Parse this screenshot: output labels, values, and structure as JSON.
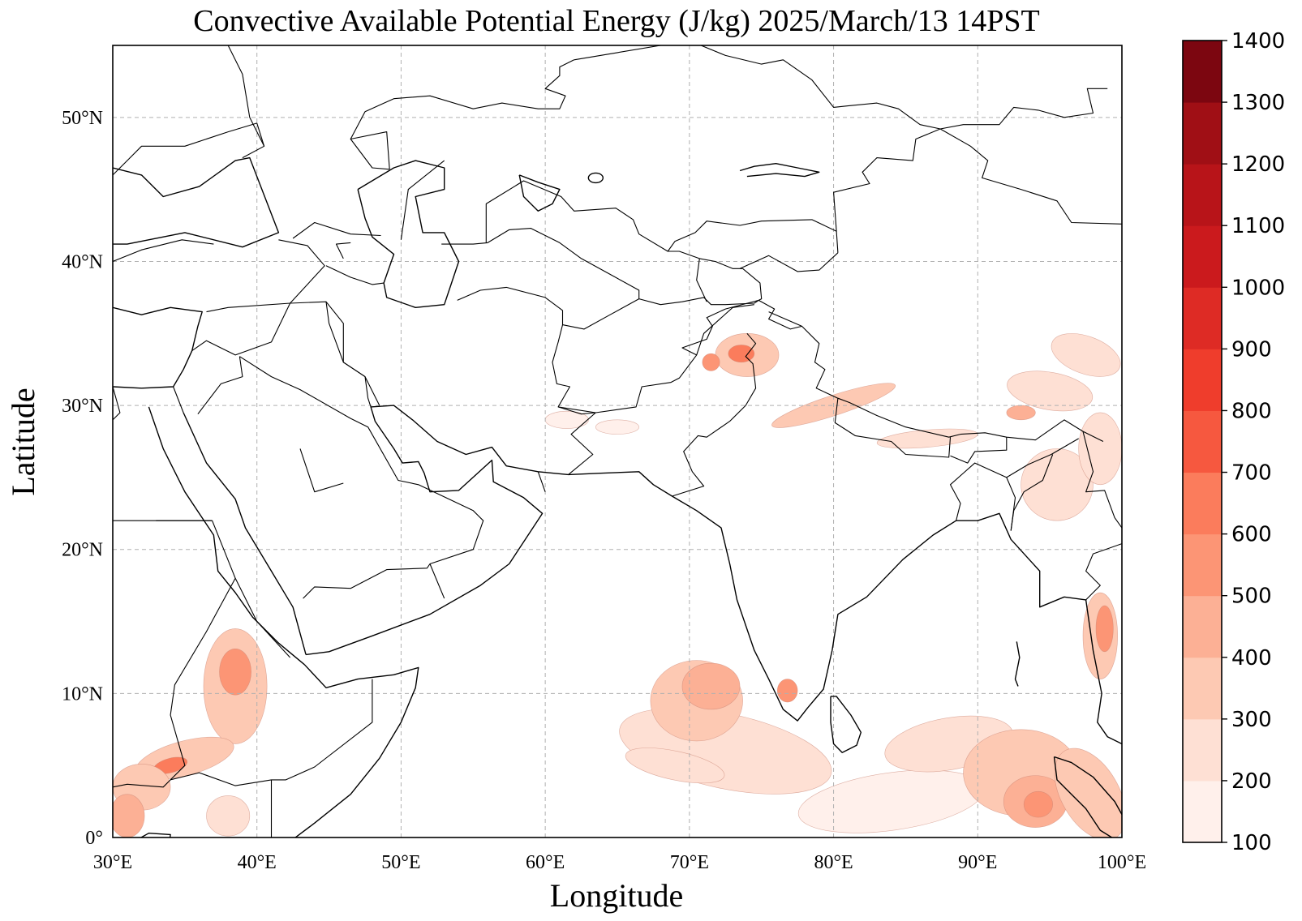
{
  "title": "Convective Available Potential Energy (J/kg)  2025/March/13 14PST",
  "xlabel": "Longitude",
  "ylabel": "Latitude",
  "map": {
    "lon_range": [
      30,
      100
    ],
    "lat_range": [
      0,
      55
    ],
    "x_ticks": [
      {
        "value": 30,
        "label": "30°E"
      },
      {
        "value": 40,
        "label": "40°E"
      },
      {
        "value": 50,
        "label": "50°E"
      },
      {
        "value": 60,
        "label": "60°E"
      },
      {
        "value": 70,
        "label": "70°E"
      },
      {
        "value": 80,
        "label": "80°E"
      },
      {
        "value": 90,
        "label": "90°E"
      },
      {
        "value": 100,
        "label": "100°E"
      }
    ],
    "y_ticks": [
      {
        "value": 0,
        "label": "0°"
      },
      {
        "value": 10,
        "label": "10°N"
      },
      {
        "value": 20,
        "label": "20°N"
      },
      {
        "value": 30,
        "label": "30°N"
      },
      {
        "value": 40,
        "label": "40°N"
      },
      {
        "value": 50,
        "label": "50°N"
      }
    ],
    "grid": true,
    "grid_color": "#b0b0b0",
    "coastline_color": "#000000"
  },
  "colorbar": {
    "position": "right",
    "levels": [
      100,
      200,
      300,
      400,
      500,
      600,
      700,
      800,
      900,
      1000,
      1100,
      1200,
      1300,
      1400
    ],
    "labels": [
      "100",
      "200",
      "300",
      "400",
      "500",
      "600",
      "700",
      "800",
      "900",
      "1000",
      "1100",
      "1200",
      "1300",
      "1400"
    ],
    "colors": [
      "#fff0eb",
      "#fee0d4",
      "#fdc9b3",
      "#fcb095",
      "#fc9575",
      "#fb7c5c",
      "#f6583f",
      "#ef3d2c",
      "#de2b25",
      "#cb1a1d",
      "#b81419",
      "#a00f15",
      "#7c0610"
    ]
  },
  "chart_data": {
    "type": "heatmap",
    "title": "Convective Available Potential Energy (J/kg)  2025/March/13 14PST",
    "xlabel": "Longitude",
    "ylabel": "Latitude",
    "xlim": [
      30,
      100
    ],
    "ylim": [
      0,
      55
    ],
    "units": "J/kg",
    "colorscale": "Reds",
    "vmin": 100,
    "vmax": 1400,
    "regions": [
      {
        "lon": [
          65,
          80
        ],
        "lat": [
          3,
          12
        ],
        "value_range": [
          100,
          500
        ]
      },
      {
        "lon": [
          80,
          97
        ],
        "lat": [
          0,
          10
        ],
        "value_range": [
          100,
          600
        ]
      },
      {
        "lon": [
          92,
          97
        ],
        "lat": [
          1,
          4
        ],
        "value_range": [
          500,
          700
        ]
      },
      {
        "lon": [
          95,
          100
        ],
        "lat": [
          0,
          17
        ],
        "value_range": [
          100,
          700
        ]
      },
      {
        "lon": [
          30,
          42
        ],
        "lat": [
          0,
          15
        ],
        "value_range": [
          100,
          700
        ]
      },
      {
        "lon": [
          70,
          95
        ],
        "lat": [
          27,
          35
        ],
        "value_range": [
          100,
          700
        ]
      },
      {
        "lon": [
          88,
          100
        ],
        "lat": [
          20,
          35
        ],
        "value_range": [
          100,
          600
        ]
      },
      {
        "lon": [
          76,
          78
        ],
        "lat": [
          9,
          11
        ],
        "value_range": [
          300,
          700
        ]
      }
    ]
  }
}
